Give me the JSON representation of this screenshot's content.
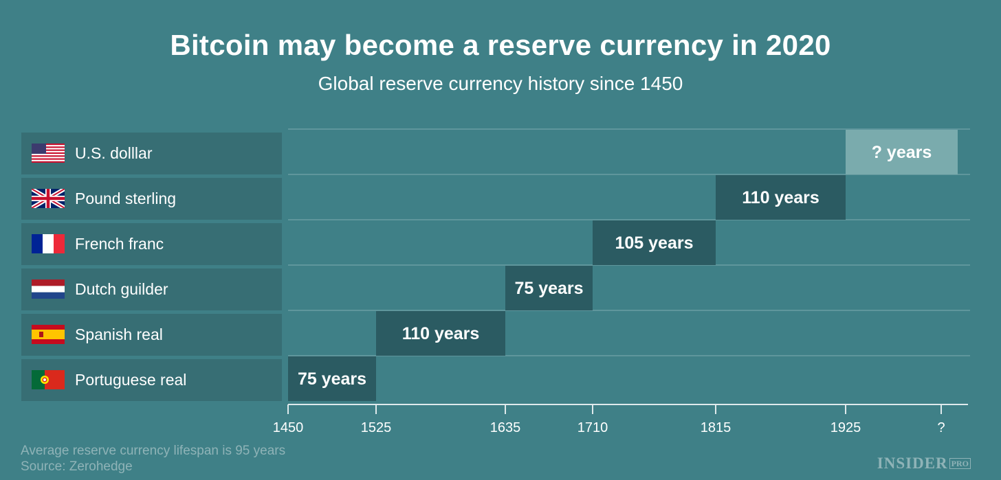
{
  "chart_data": {
    "type": "bar",
    "title": "Bitcoin may become a reserve currency in 2020",
    "subtitle": "Global reserve currency history since 1450",
    "x_ticks": [
      "1450",
      "1525",
      "1635",
      "1710",
      "1815",
      "1925",
      "?"
    ],
    "series": [
      {
        "name": "U.S. dolllar",
        "flag": "us-flag-icon",
        "start": 1925,
        "end": "?",
        "label": "? years"
      },
      {
        "name": "Pound sterling",
        "flag": "uk-flag-icon",
        "start": 1815,
        "end": 1925,
        "label": "110 years"
      },
      {
        "name": "French franc",
        "flag": "france-flag-icon",
        "start": 1710,
        "end": 1815,
        "label": "105 years"
      },
      {
        "name": "Dutch guilder",
        "flag": "netherlands-flag-icon",
        "start": 1635,
        "end": 1710,
        "label": "75 years"
      },
      {
        "name": "Spanish real",
        "flag": "spain-flag-icon",
        "start": 1525,
        "end": 1635,
        "label": "110 years"
      },
      {
        "name": "Portuguese real",
        "flag": "portugal-flag-icon",
        "start": 1450,
        "end": 1525,
        "label": "75 years"
      }
    ],
    "colors": {
      "bar": "#2b5b62",
      "bar_unknown": "#7aabad",
      "row_label_bg": "#376e74",
      "background": "#3f8087"
    }
  },
  "footnote": {
    "line1": "Average reserve currency lifespan is 95 years",
    "line2": "Source: Zerohedge"
  },
  "logo": {
    "text": "INSIDER",
    "badge": "PRO"
  }
}
